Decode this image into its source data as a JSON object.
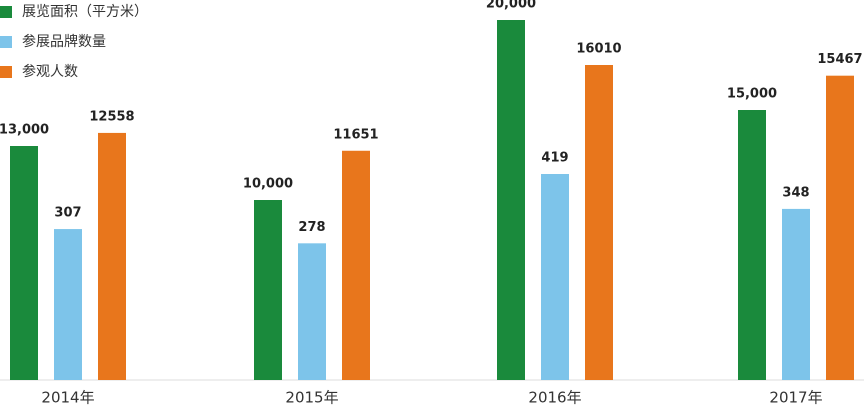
{
  "chart_data": {
    "type": "bar",
    "categories": [
      "2014年",
      "2015年",
      "2016年",
      "2017年"
    ],
    "series": [
      {
        "name": "展览面积（平方米）",
        "color": "#1a8a3c",
        "values": [
          13000,
          10000,
          20000,
          15000
        ],
        "value_labels": [
          "13,000",
          "10,000",
          "20,000",
          "15,000"
        ]
      },
      {
        "name": "参展品牌数量",
        "color": "#7dc4ea",
        "values": [
          307,
          278,
          419,
          348
        ]
      },
      {
        "name": "参观人数",
        "color": "#e8761c",
        "values": [
          12558,
          11651,
          16010,
          15467
        ]
      }
    ],
    "legend": "upper-left"
  }
}
